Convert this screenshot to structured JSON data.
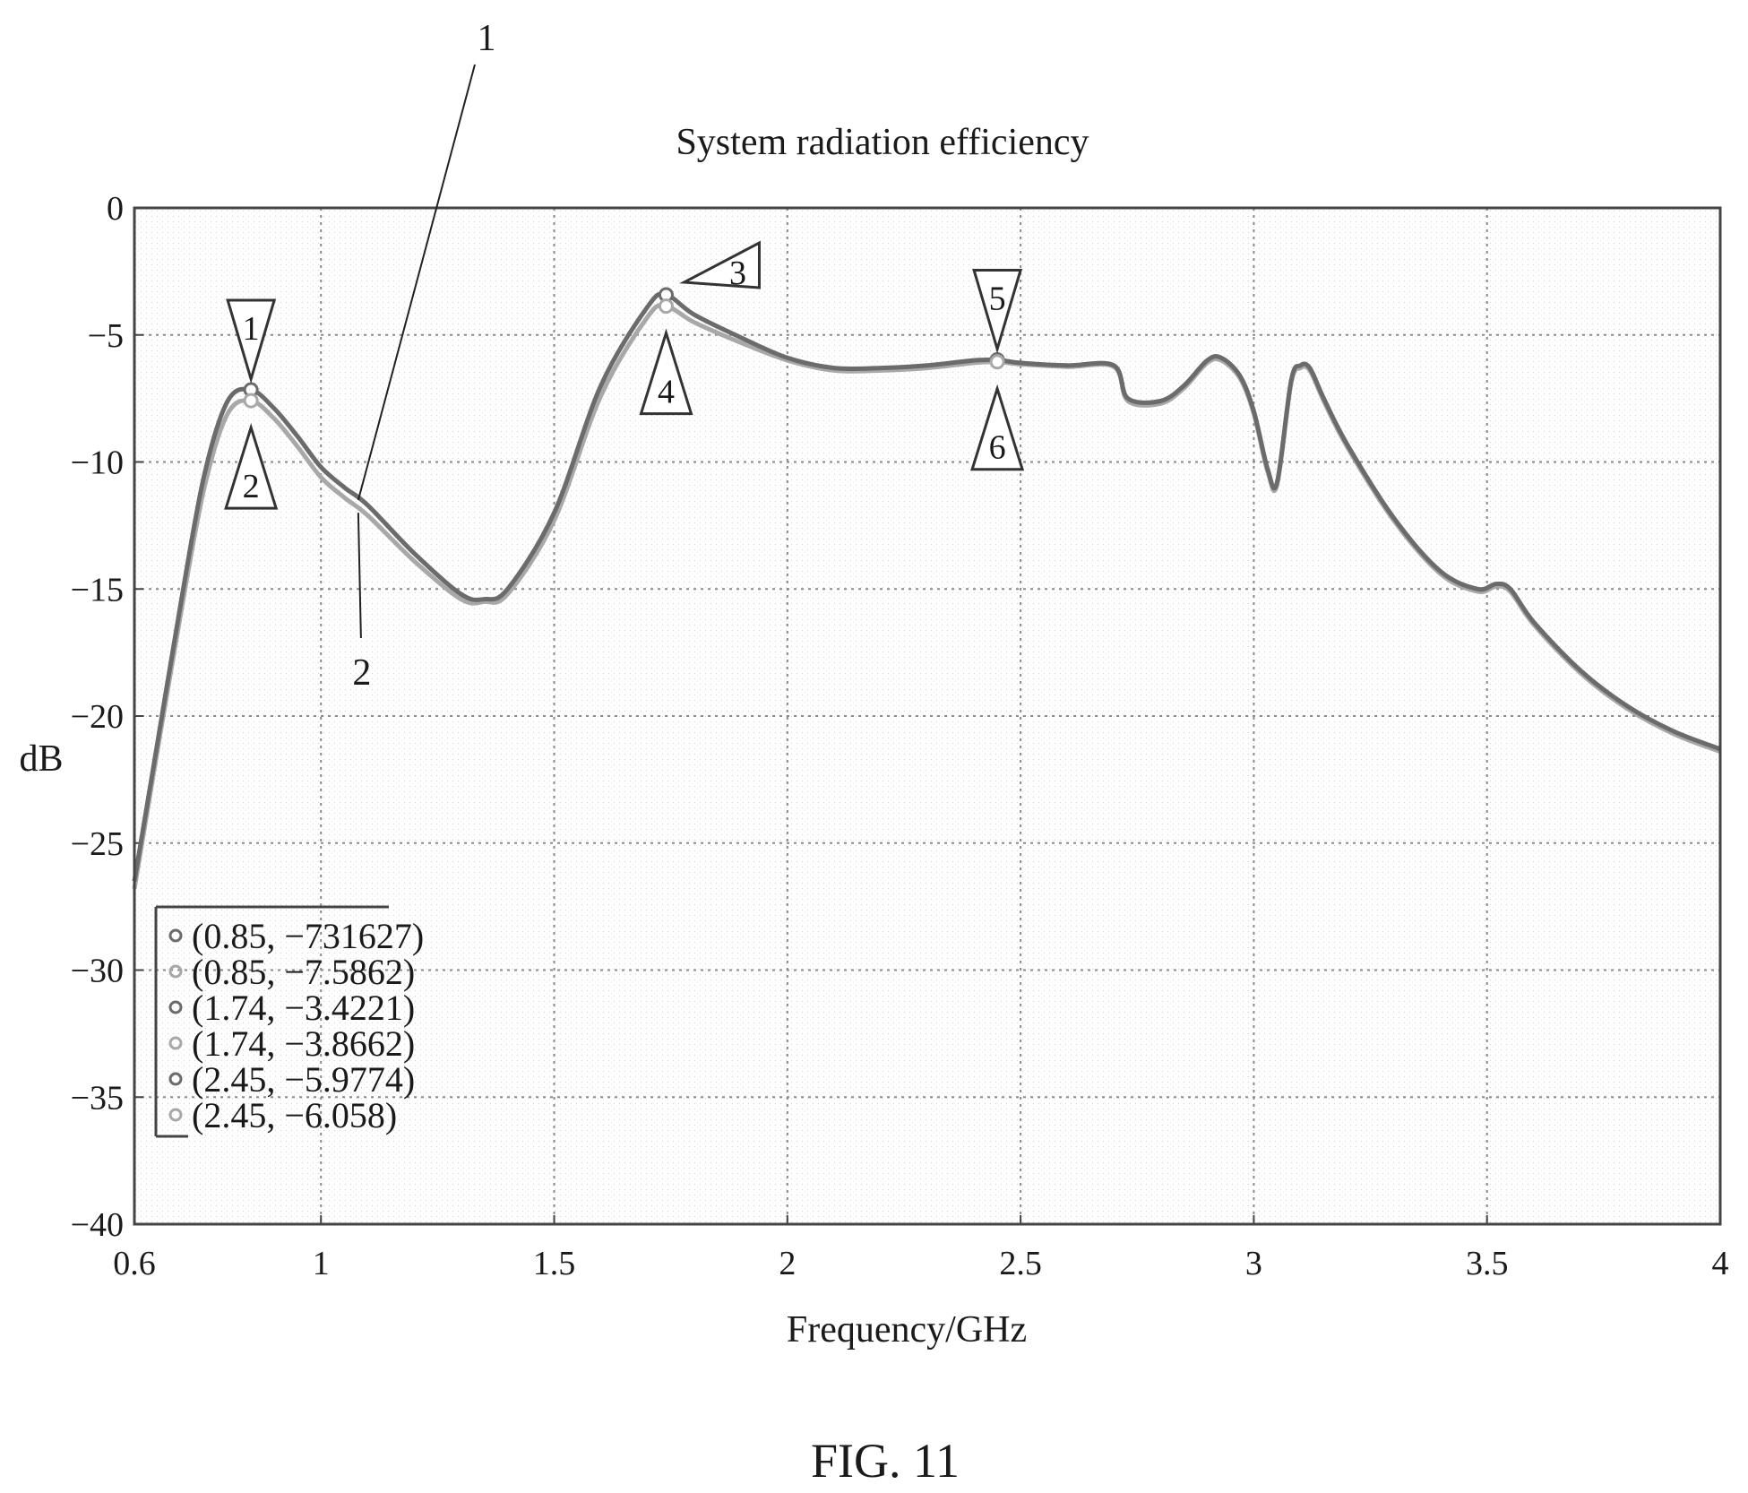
{
  "chart_data": {
    "type": "line",
    "title": "System radiation efficiency",
    "xlabel": "Frequency/GHz",
    "ylabel": "dB",
    "xlim": [
      0.6,
      4
    ],
    "ylim": [
      -40,
      0
    ],
    "x_ticks": [
      0.6,
      1,
      1.5,
      2,
      2.5,
      3,
      3.5,
      4
    ],
    "y_ticks": [
      0,
      -5,
      -10,
      -15,
      -20,
      -25,
      -30,
      -35,
      -40
    ],
    "grid": true,
    "series": [
      {
        "name": "1",
        "color": "#6b6b6b",
        "x": [
          0.6,
          0.65,
          0.7,
          0.75,
          0.8,
          0.85,
          0.9,
          0.95,
          1.0,
          1.05,
          1.1,
          1.2,
          1.3,
          1.35,
          1.4,
          1.5,
          1.6,
          1.7,
          1.74,
          1.8,
          1.9,
          2.0,
          2.1,
          2.2,
          2.3,
          2.4,
          2.45,
          2.5,
          2.6,
          2.7,
          2.73,
          2.8,
          2.85,
          2.9,
          2.93,
          2.97,
          3.0,
          3.03,
          3.05,
          3.08,
          3.1,
          3.12,
          3.15,
          3.2,
          3.3,
          3.4,
          3.48,
          3.52,
          3.55,
          3.6,
          3.7,
          3.8,
          3.9,
          4.0
        ],
        "y": [
          -26.5,
          -21.0,
          -15.5,
          -10.5,
          -7.6,
          -7.16,
          -7.9,
          -9.0,
          -10.2,
          -11.0,
          -11.7,
          -13.6,
          -15.2,
          -15.4,
          -15.0,
          -12.0,
          -7.0,
          -3.9,
          -3.42,
          -4.2,
          -5.1,
          -5.9,
          -6.3,
          -6.3,
          -6.2,
          -6.0,
          -5.98,
          -6.1,
          -6.2,
          -6.2,
          -7.5,
          -7.6,
          -7.0,
          -6.0,
          -5.9,
          -6.6,
          -8.0,
          -10.3,
          -10.8,
          -6.8,
          -6.2,
          -6.3,
          -7.5,
          -9.3,
          -12.2,
          -14.3,
          -15.0,
          -14.8,
          -15.0,
          -16.3,
          -18.2,
          -19.6,
          -20.6,
          -21.3
        ]
      },
      {
        "name": "2",
        "color": "#a8a8a8",
        "x": [
          0.6,
          0.65,
          0.7,
          0.75,
          0.8,
          0.85,
          0.9,
          0.95,
          1.0,
          1.05,
          1.1,
          1.2,
          1.3,
          1.35,
          1.4,
          1.5,
          1.6,
          1.7,
          1.74,
          1.8,
          1.9,
          2.0,
          2.1,
          2.2,
          2.3,
          2.4,
          2.45,
          2.5,
          2.6,
          2.7,
          2.73,
          2.8,
          2.85,
          2.9,
          2.93,
          2.97,
          3.0,
          3.03,
          3.05,
          3.08,
          3.1,
          3.12,
          3.15,
          3.2,
          3.3,
          3.4,
          3.48,
          3.52,
          3.55,
          3.6,
          3.7,
          3.8,
          3.9,
          4.0
        ],
        "y": [
          -26.8,
          -21.3,
          -15.9,
          -11.0,
          -8.1,
          -7.59,
          -8.3,
          -9.4,
          -10.6,
          -11.4,
          -12.1,
          -13.9,
          -15.4,
          -15.5,
          -15.2,
          -12.3,
          -7.4,
          -4.3,
          -3.87,
          -4.5,
          -5.3,
          -6.0,
          -6.4,
          -6.4,
          -6.3,
          -6.1,
          -6.06,
          -6.15,
          -6.25,
          -6.25,
          -7.6,
          -7.7,
          -7.1,
          -6.1,
          -6.0,
          -6.7,
          -8.1,
          -10.4,
          -10.9,
          -6.9,
          -6.3,
          -6.4,
          -7.6,
          -9.4,
          -12.3,
          -14.4,
          -15.1,
          -14.9,
          -15.1,
          -16.4,
          -18.3,
          -19.7,
          -20.7,
          -21.4
        ]
      }
    ],
    "markers": [
      {
        "label": "1",
        "x": 0.85,
        "y": -7.16,
        "series": "1",
        "pointer": "down"
      },
      {
        "label": "2",
        "x": 0.85,
        "y": -7.5862,
        "series": "2",
        "pointer": "up"
      },
      {
        "label": "3",
        "x": 1.74,
        "y": -3.4221,
        "series": "1",
        "pointer": "left"
      },
      {
        "label": "4",
        "x": 1.74,
        "y": -3.8662,
        "series": "2",
        "pointer": "up"
      },
      {
        "label": "5",
        "x": 2.45,
        "y": -5.9774,
        "series": "1",
        "pointer": "down"
      },
      {
        "label": "6",
        "x": 2.45,
        "y": -6.058,
        "series": "2",
        "pointer": "up"
      }
    ],
    "legend": {
      "placement": "bottom-left",
      "entries": [
        "(0.85, −731627)",
        "(0.85, −7.5862)",
        "(1.74, −3.4221)",
        "(1.74, −3.8662)",
        "(2.45, −5.9774)",
        "(2.45, −6.058)"
      ]
    },
    "callouts": [
      {
        "label": "1",
        "x": 1.08,
        "y": -11.5,
        "series": "1"
      },
      {
        "label": "2",
        "x": 1.08,
        "y": -12.0,
        "series": "2"
      }
    ]
  },
  "figure_caption": "FIG. 11"
}
